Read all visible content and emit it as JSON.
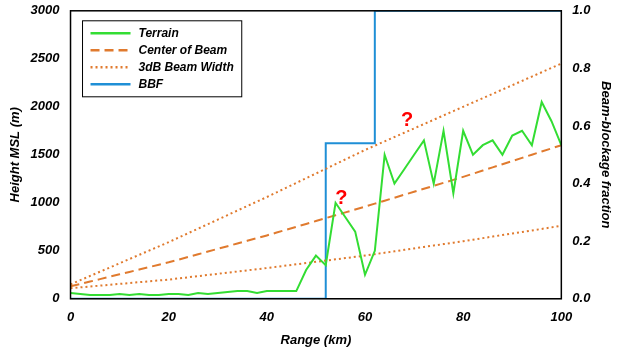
{
  "chart_data": {
    "type": "line",
    "x_label": "Range (km)",
    "y_label": "Height MSL (m)",
    "y2_label": "Beam-blockage fraction",
    "x": [
      0,
      2,
      4,
      6,
      8,
      10,
      12,
      14,
      16,
      18,
      20,
      22,
      24,
      26,
      28,
      30,
      32,
      34,
      36,
      38,
      40,
      42,
      44,
      46,
      48,
      50,
      52,
      54,
      56,
      58,
      60,
      62,
      64,
      66,
      68,
      70,
      72,
      74,
      76,
      78,
      80,
      82,
      84,
      86,
      88,
      90,
      92,
      94,
      96,
      98,
      100
    ],
    "series": [
      {
        "name": "Terrain",
        "color": "#33dd33",
        "line_style": "solid",
        "values": [
          60,
          50,
          40,
          40,
          40,
          50,
          40,
          50,
          40,
          40,
          50,
          50,
          40,
          60,
          50,
          60,
          70,
          80,
          80,
          60,
          80,
          80,
          80,
          80,
          300,
          450,
          350,
          1000,
          850,
          700,
          250,
          500,
          1500,
          1200,
          1350,
          1500,
          1650,
          1200,
          1750,
          1100,
          1750,
          1500,
          1600,
          1650,
          1500,
          1700,
          1750,
          1600,
          2050,
          1850,
          1600
        ]
      },
      {
        "name": "Center of Beam",
        "color": "#e07a2e",
        "line_style": "dashed",
        "values": [
          130,
          155,
          180,
          205,
          230,
          255,
          280,
          305,
          330,
          355,
          380,
          408,
          436,
          464,
          492,
          520,
          548,
          576,
          604,
          632,
          660,
          690,
          720,
          750,
          780,
          810,
          840,
          870,
          900,
          930,
          960,
          991,
          1022,
          1053,
          1084,
          1115,
          1146,
          1177,
          1208,
          1239,
          1270,
          1303,
          1336,
          1369,
          1402,
          1435,
          1468,
          1501,
          1534,
          1567,
          1600
        ]
      },
      {
        "name": "3dB Beam Width",
        "color": "#e07a2e",
        "line_style": "dotted",
        "values": [
          150,
          194,
          238,
          282,
          326,
          370,
          414,
          458,
          502,
          546,
          590,
          637,
          684,
          731,
          778,
          825,
          872,
          919,
          966,
          1013,
          1060,
          1109,
          1158,
          1207,
          1256,
          1305,
          1354,
          1403,
          1452,
          1501,
          1550,
          1595,
          1640,
          1685,
          1730,
          1775,
          1820,
          1865,
          1910,
          1955,
          2000,
          2045,
          2090,
          2135,
          2180,
          2225,
          2270,
          2315,
          2360,
          2405,
          2450
        ],
        "lower_values": [
          110,
          119,
          128,
          137,
          146,
          155,
          164,
          173,
          182,
          191,
          200,
          212,
          224,
          236,
          248,
          260,
          272,
          284,
          296,
          308,
          320,
          333,
          346,
          359,
          372,
          385,
          398,
          411,
          424,
          437,
          450,
          465,
          480,
          495,
          510,
          525,
          540,
          555,
          570,
          585,
          600,
          616,
          632,
          648,
          664,
          680,
          696,
          712,
          728,
          744,
          760
        ]
      },
      {
        "name": "BBF",
        "color": "#1f8fd6",
        "line_style": "step",
        "axis": "y2",
        "values": [
          0,
          0,
          0,
          0,
          0,
          0,
          0,
          0,
          0,
          0,
          0,
          0,
          0,
          0,
          0,
          0,
          0,
          0,
          0,
          0,
          0,
          0,
          0,
          0,
          0,
          0,
          0,
          0.54,
          0.54,
          0.54,
          0.54,
          0.54,
          1,
          1,
          1,
          1,
          1,
          1,
          1,
          1,
          1,
          1,
          1,
          1,
          1,
          1,
          1,
          1,
          1,
          1,
          1
        ]
      }
    ],
    "annotations": [
      {
        "text": "?",
        "x": 68.6,
        "y": 1860,
        "color": "#ff0000"
      },
      {
        "text": "?",
        "x": 55.2,
        "y": 1050,
        "color": "#ff0000"
      }
    ],
    "xlim": [
      0,
      100
    ],
    "xticks": [
      0,
      20,
      40,
      60,
      80,
      100
    ],
    "ylim": [
      0,
      3000
    ],
    "yticks": [
      0,
      500,
      1000,
      1500,
      2000,
      2500,
      3000
    ],
    "y2lim": [
      0,
      1
    ],
    "y2ticks": [
      {
        "value": 0,
        "label": "0.0"
      },
      0.2,
      0.4,
      0.6,
      0.8,
      {
        "value": 1,
        "label": "1.0"
      }
    ],
    "grid": false,
    "legend": "upper left"
  }
}
